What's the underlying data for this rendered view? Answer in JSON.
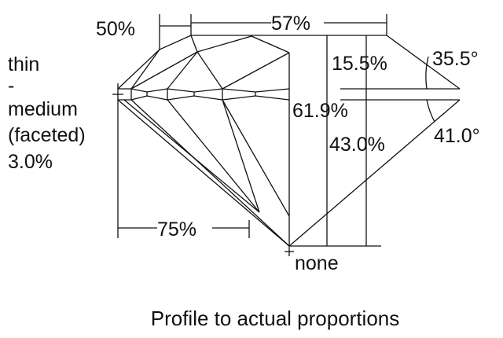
{
  "labels": {
    "star_length": "50%",
    "table": "57%",
    "girdle": [
      "thin",
      "-",
      "medium",
      "(faceted)",
      "3.0%"
    ],
    "crown_height": "15.5%",
    "crown_angle": "35.5°",
    "total_depth": "61.9%",
    "pavilion_angle": "41.0°",
    "pavilion_depth": "43.0%",
    "lower_half": "75%",
    "culet": "none"
  },
  "caption": "Profile to actual proportions"
}
